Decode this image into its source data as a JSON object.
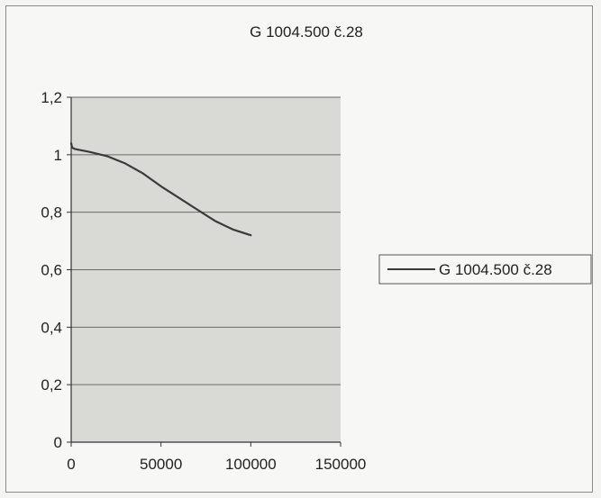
{
  "chart_data": {
    "type": "line",
    "title": "G 1004.500 č.28",
    "xlabel": "",
    "ylabel": "",
    "xlim": [
      0,
      150000
    ],
    "ylim": [
      0,
      1.2
    ],
    "x_ticks": [
      0,
      50000,
      100000,
      150000
    ],
    "x_tick_labels": [
      "0",
      "50000",
      "100000",
      "150000"
    ],
    "y_ticks": [
      0,
      0.2,
      0.4,
      0.6,
      0.8,
      1.0,
      1.2
    ],
    "y_tick_labels": [
      "0",
      "0,2",
      "0,4",
      "0,6",
      "0,8",
      "1",
      "1,2"
    ],
    "grid": true,
    "legend_position": "right",
    "colors": {
      "plot_bg": "#d9d9d6",
      "line": "#3a3a3a",
      "grid": "#6b6b6b"
    },
    "series": [
      {
        "name": "G 1004.500 č.28",
        "x": [
          0,
          500,
          2000,
          10000,
          20000,
          30000,
          40000,
          50000,
          60000,
          70000,
          80000,
          90000,
          100000
        ],
        "y": [
          1.04,
          1.025,
          1.02,
          1.01,
          0.995,
          0.97,
          0.935,
          0.89,
          0.85,
          0.81,
          0.77,
          0.74,
          0.72
        ]
      }
    ]
  }
}
